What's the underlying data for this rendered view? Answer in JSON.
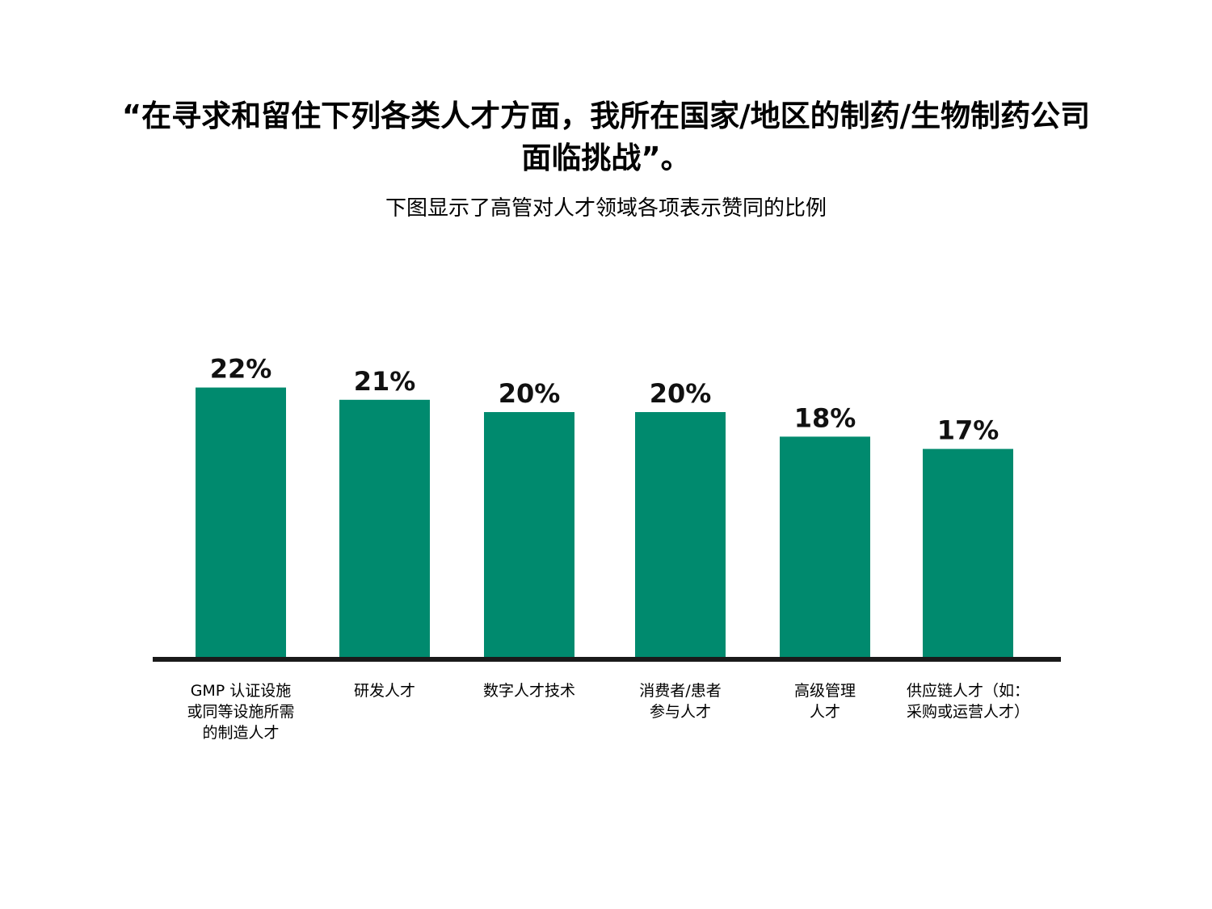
{
  "title": "“在寻求和留住下列各类人才方面，我所在国家/地区的制药/生物制药公司面临挑战”。",
  "subtitle": "下图显示了高管对人才领域各项表示赞同的比例",
  "colors": {
    "bar": "#008A6E",
    "axis": "#1a1a1a"
  },
  "chart_data": {
    "type": "bar",
    "categories": [
      "GMP 认证设施\n或同等设施所需\n的制造人才",
      "研发人才",
      "数字人才技术",
      "消费者/患者\n参与人才",
      "高级管理\n人才",
      "供应链人才（如：\n采购或运营人才）"
    ],
    "values": [
      22,
      21,
      20,
      20,
      18,
      17
    ],
    "value_labels": [
      "22%",
      "21%",
      "20%",
      "20%",
      "18%",
      "17%"
    ],
    "title": "“在寻求和留住下列各类人才方面，我所在国家/地区的制药/生物制药公司面临挑战”。",
    "subtitle": "下图显示了高管对人才领域各项表示赞同的比例",
    "xlabel": "",
    "ylabel": "",
    "ylim": [
      0,
      100
    ],
    "grid": false
  }
}
